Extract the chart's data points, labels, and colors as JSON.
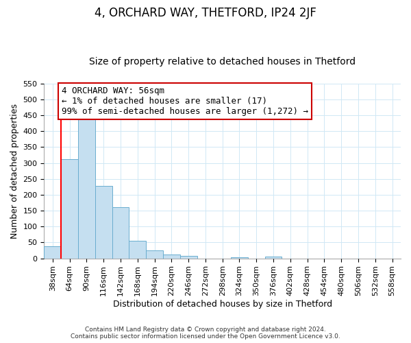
{
  "title": "4, ORCHARD WAY, THETFORD, IP24 2JF",
  "subtitle": "Size of property relative to detached houses in Thetford",
  "xlabel": "Distribution of detached houses by size in Thetford",
  "ylabel": "Number of detached properties",
  "categories": [
    "38sqm",
    "64sqm",
    "90sqm",
    "116sqm",
    "142sqm",
    "168sqm",
    "194sqm",
    "220sqm",
    "246sqm",
    "272sqm",
    "298sqm",
    "324sqm",
    "350sqm",
    "376sqm",
    "402sqm",
    "428sqm",
    "454sqm",
    "480sqm",
    "506sqm",
    "532sqm",
    "558sqm"
  ],
  "values": [
    38,
    313,
    458,
    228,
    160,
    55,
    25,
    12,
    8,
    0,
    0,
    4,
    0,
    6,
    0,
    0,
    0,
    0,
    0,
    0,
    0
  ],
  "bar_color": "#c5dff0",
  "bar_edge_color": "#6aadcf",
  "ylim": [
    0,
    550
  ],
  "yticks": [
    0,
    50,
    100,
    150,
    200,
    250,
    300,
    350,
    400,
    450,
    500,
    550
  ],
  "annotation_text": "4 ORCHARD WAY: 56sqm\n← 1% of detached houses are smaller (17)\n99% of semi-detached houses are larger (1,272) →",
  "annotation_box_color": "#ffffff",
  "annotation_box_edge_color": "#cc0000",
  "red_line_x": 0.5,
  "footer_line1": "Contains HM Land Registry data © Crown copyright and database right 2024.",
  "footer_line2": "Contains public sector information licensed under the Open Government Licence v3.0.",
  "background_color": "#ffffff",
  "grid_color": "#d0e8f5",
  "title_fontsize": 12,
  "subtitle_fontsize": 10,
  "ylabel_fontsize": 9,
  "xlabel_fontsize": 9,
  "tick_fontsize": 8,
  "annot_fontsize": 9
}
